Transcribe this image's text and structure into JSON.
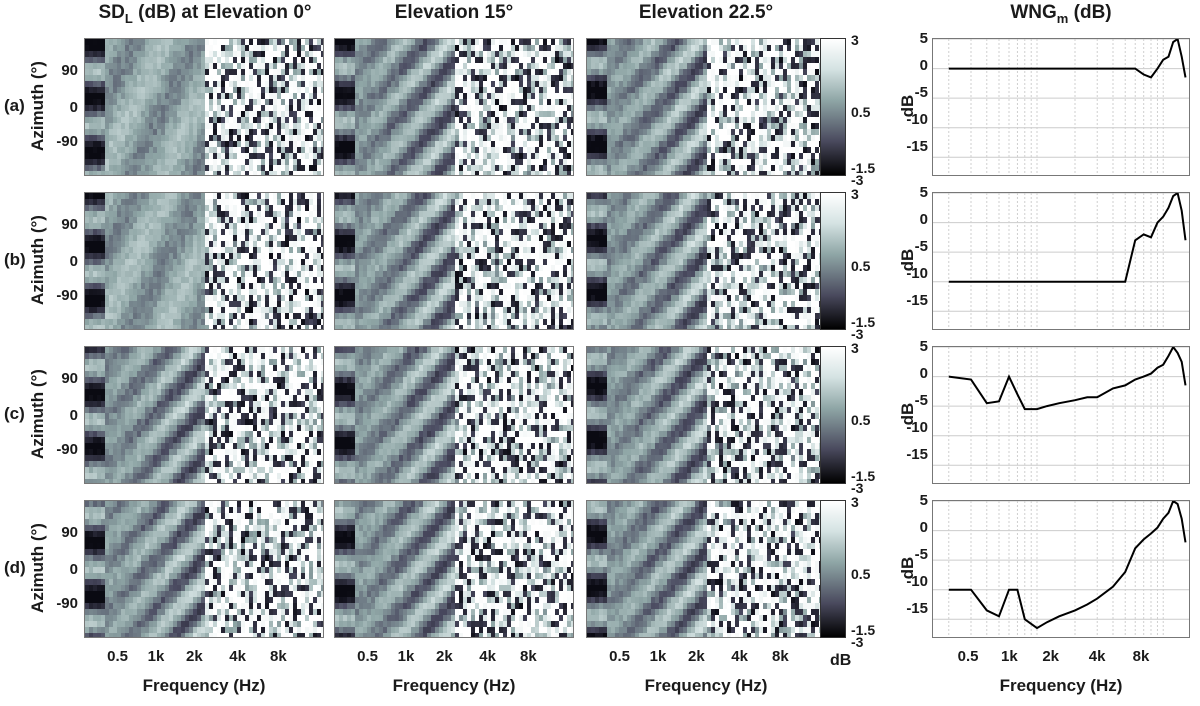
{
  "titles": {
    "col1_main": "SD",
    "col1_sub": "L",
    "col1_rest": " (dB) at Elevation 0°",
    "col2": "Elevation 15°",
    "col3": "Elevation 22.5°",
    "col4_main": "WNG",
    "col4_sub": "m",
    "col4_rest": " (dB)"
  },
  "row_labels": [
    "(a)",
    "(b)",
    "(c)",
    "(d)"
  ],
  "azimuth_label": "Azimuth (°)",
  "azimuth_ticks": [
    "90",
    "0",
    "-90"
  ],
  "freq_ticks": [
    "0.5",
    "1k",
    "2k",
    "4k",
    "8k"
  ],
  "x_label": "Frequency (Hz)",
  "colorbar": {
    "ticks": [
      "3",
      "0.5",
      "-1.5",
      "-3"
    ],
    "unit": "dB"
  },
  "wng_ylabel": "dB",
  "wng_yticks": [
    "5",
    "0",
    "-5",
    "-10",
    "-15"
  ],
  "colors": {
    "background": "#ffffff",
    "line": "#000000",
    "low": "#000000",
    "mid": "#8fa6a6",
    "high": "#ffffff"
  },
  "chart_data": [
    {
      "type": "heatmap",
      "row": "(a)",
      "title": "SDL (dB) at Elevation 0°",
      "xlabel": "",
      "ylabel": "Azimuth (°)",
      "x_ticks": [
        "0.5",
        "1k",
        "2k",
        "4k",
        "8k"
      ],
      "y_ticks": [
        "90",
        "0",
        "-90"
      ],
      "clim": [
        -3,
        3
      ]
    },
    {
      "type": "heatmap",
      "row": "(a)",
      "title": "Elevation 15°",
      "clim": [
        -3,
        3
      ]
    },
    {
      "type": "heatmap",
      "row": "(a)",
      "title": "Elevation 22.5°",
      "clim": [
        -3,
        3
      ]
    },
    {
      "type": "heatmap",
      "row": "(b)",
      "clim": [
        -3,
        3
      ]
    },
    {
      "type": "heatmap",
      "row": "(b)",
      "clim": [
        -3,
        3
      ]
    },
    {
      "type": "heatmap",
      "row": "(b)",
      "clim": [
        -3,
        3
      ]
    },
    {
      "type": "heatmap",
      "row": "(c)",
      "clim": [
        -3,
        3
      ]
    },
    {
      "type": "heatmap",
      "row": "(c)",
      "clim": [
        -3,
        3
      ]
    },
    {
      "type": "heatmap",
      "row": "(c)",
      "clim": [
        -3,
        3
      ]
    },
    {
      "type": "heatmap",
      "row": "(d)",
      "xlabel": "Frequency (Hz)",
      "clim": [
        -3,
        3
      ]
    },
    {
      "type": "heatmap",
      "row": "(d)",
      "xlabel": "Frequency (Hz)",
      "clim": [
        -3,
        3
      ]
    },
    {
      "type": "heatmap",
      "row": "(d)",
      "xlabel": "Frequency (Hz)",
      "clim": [
        -3,
        3
      ]
    },
    {
      "type": "line",
      "title": "WNGm (dB)",
      "xlabel": "Frequency (Hz)",
      "ylabel": "dB",
      "xscale": "log",
      "x_ticks": [
        "0.5",
        "1k",
        "2k",
        "4k",
        "8k"
      ],
      "ylim": [
        -18,
        5
      ],
      "grid": true,
      "x": [
        200,
        300,
        400,
        500,
        600,
        700,
        800,
        1000,
        1200,
        1500,
        2000,
        2500,
        3000,
        4000,
        5000,
        6000,
        7000,
        8000,
        9000,
        10000,
        11000,
        12000,
        13000,
        14000,
        15000
      ],
      "series": [
        {
          "row": "(a)",
          "values": [
            0,
            0,
            0,
            0,
            0,
            0,
            0,
            0,
            0,
            0,
            0,
            0,
            0,
            0,
            0,
            0,
            -1,
            -1.5,
            0,
            1.5,
            2,
            4.5,
            5,
            2,
            -1.5
          ]
        },
        {
          "row": "(b)",
          "values": [
            -10,
            -10,
            -10,
            -10,
            -10,
            -10,
            -10,
            -10,
            -10,
            -10,
            -10,
            -10,
            -10,
            -10,
            -10,
            -3,
            -2,
            -2.5,
            0,
            1,
            2.5,
            4.5,
            5,
            2,
            -3
          ]
        },
        {
          "row": "(c)",
          "values": [
            0,
            -0.5,
            -4.5,
            -4.2,
            0,
            -3,
            -5.5,
            -5.5,
            -5,
            -4.5,
            -4,
            -3.5,
            -3.5,
            -2,
            -1.5,
            -0.5,
            0,
            0.5,
            1.5,
            2,
            3.5,
            5,
            4,
            2.5,
            -1.5
          ]
        },
        {
          "row": "(d)",
          "values": [
            -10,
            -10,
            -13.5,
            -14.5,
            -10,
            -10,
            -15,
            -16.5,
            -15.5,
            -14.5,
            -13.5,
            -12.5,
            -11.5,
            -9.5,
            -7,
            -3,
            -1.5,
            -0.5,
            0.5,
            2,
            3,
            5,
            4.5,
            2,
            -2
          ]
        }
      ]
    }
  ]
}
